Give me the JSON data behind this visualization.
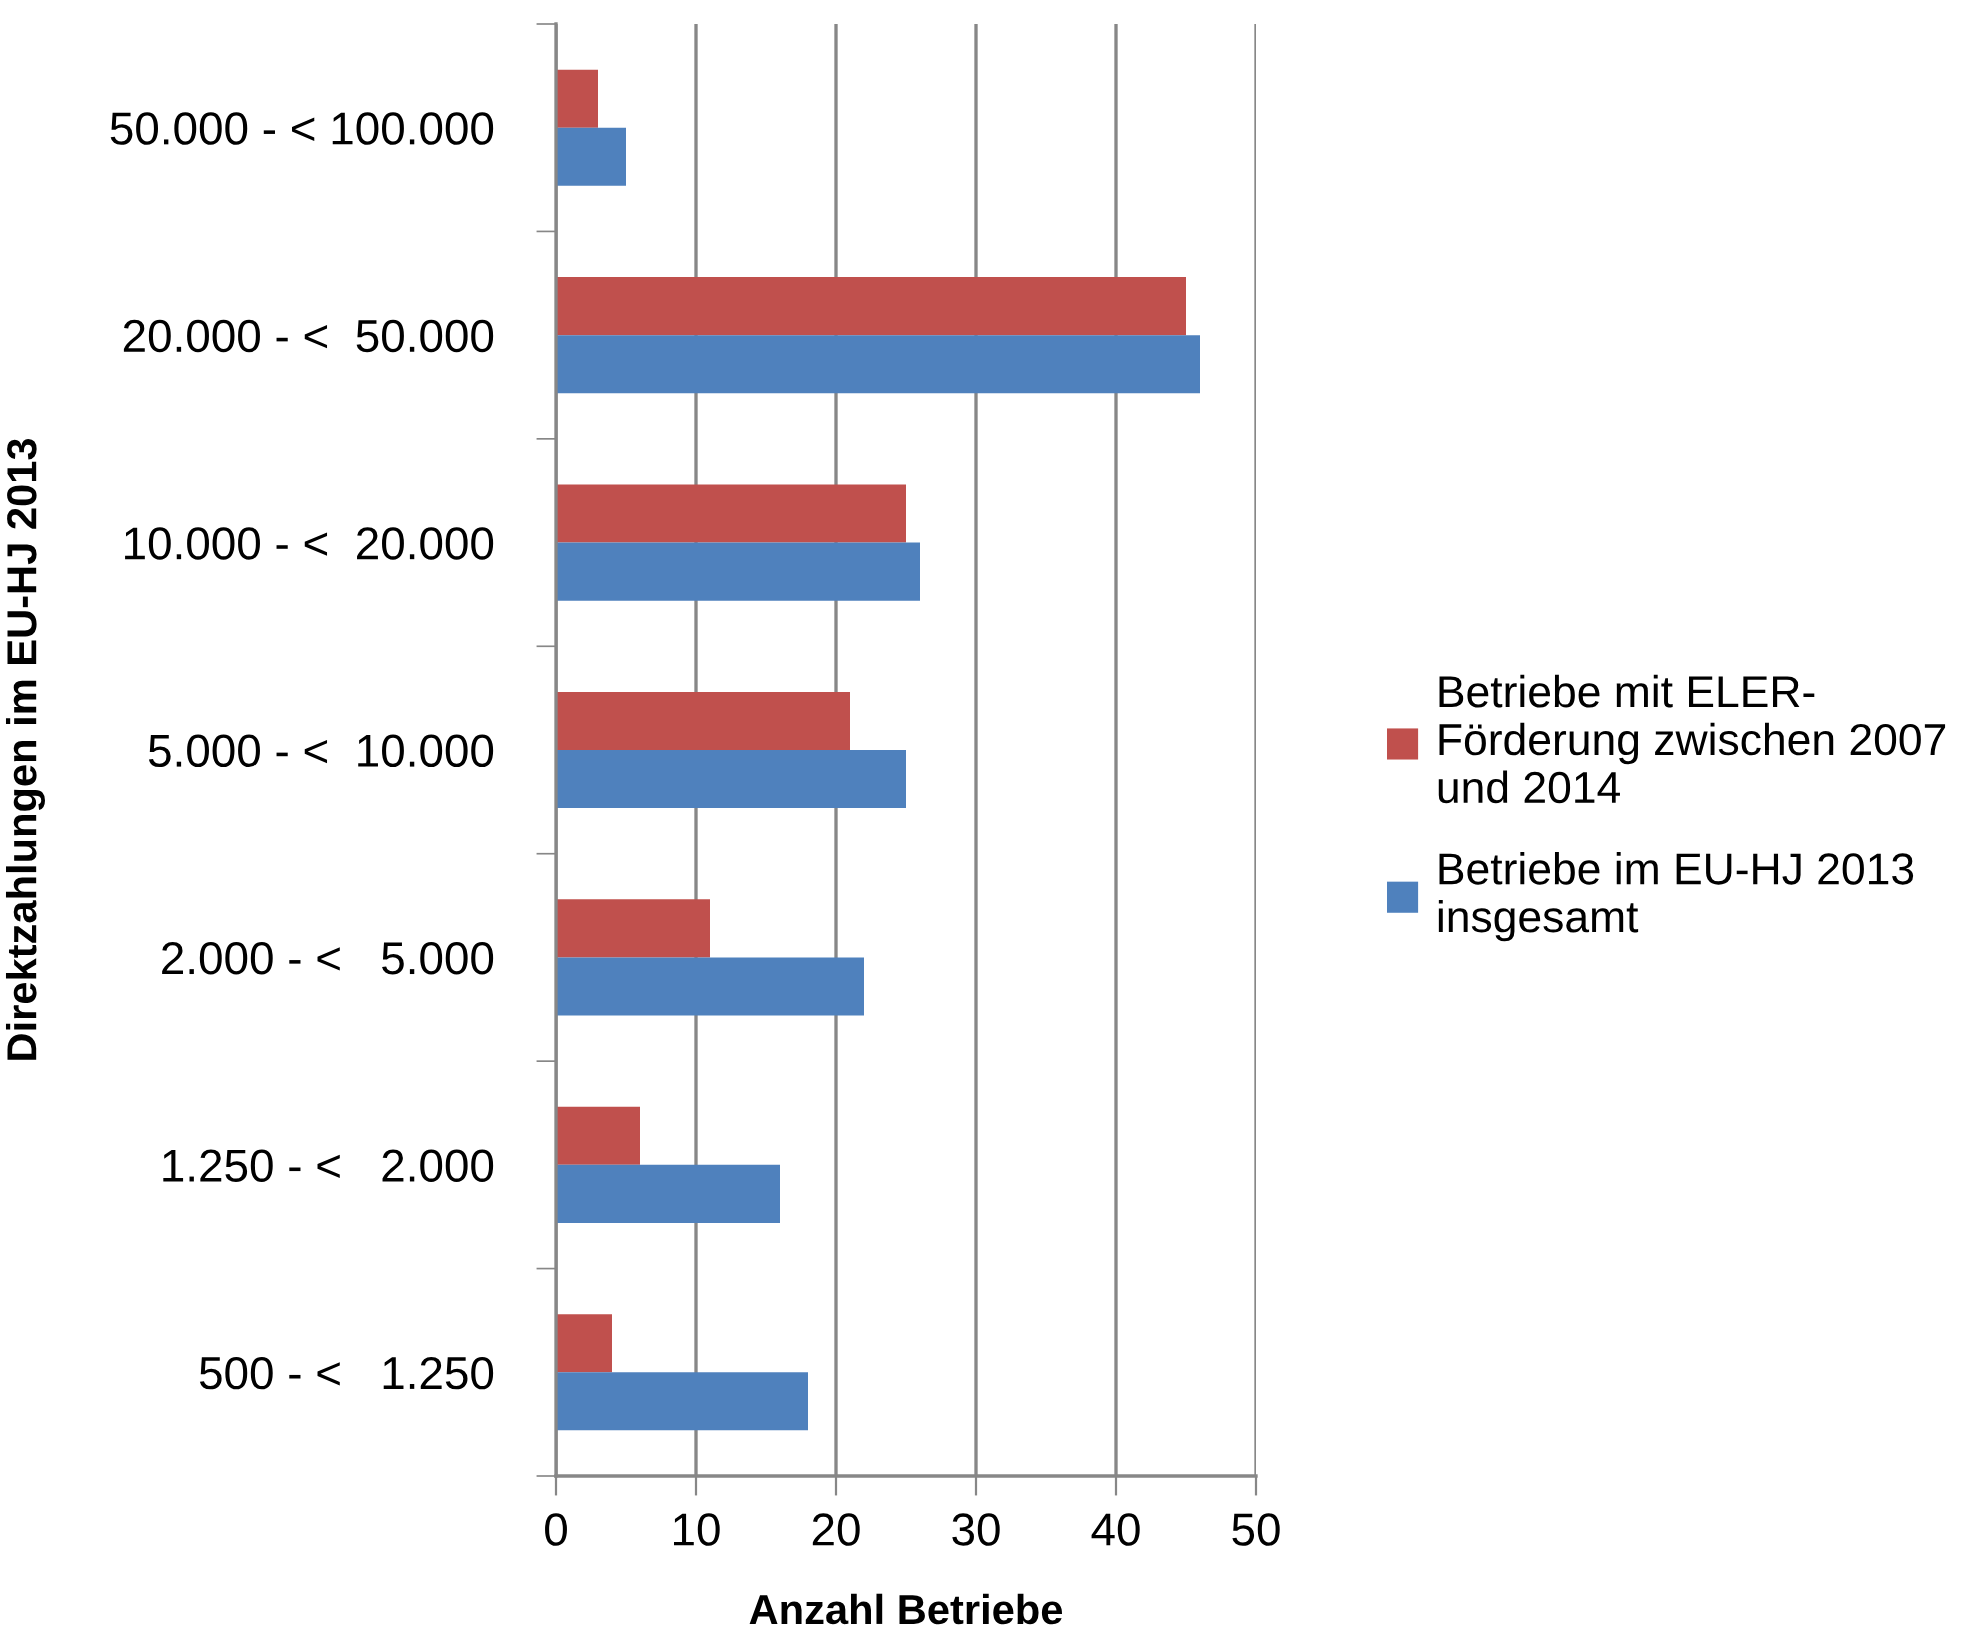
{
  "chart_data": {
    "type": "bar",
    "orientation": "horizontal",
    "xlabel": "Anzahl Betriebe",
    "ylabel": "Direktzahlungen im EU-HJ 2013",
    "categories": [
      "50.000 - < 100.000",
      "20.000 - <  50.000",
      "10.000 - <  20.000",
      "5.000 - <  10.000",
      "2.000 - <   5.000",
      "1.250 - <   2.000",
      "500 - <   1.250"
    ],
    "series": [
      {
        "name": "Betriebe mit ELER-\nFörderung zwischen 2007\nund 2014",
        "color": "#c0504d",
        "values": [
          3,
          45,
          25,
          21,
          11,
          6,
          4
        ]
      },
      {
        "name": "Betriebe im EU-HJ 2013\ninsgesamt",
        "color": "#4f81bd",
        "values": [
          5,
          46,
          26,
          25,
          22,
          16,
          18
        ]
      }
    ],
    "xlim": [
      0,
      50
    ],
    "xticks": [
      0,
      10,
      20,
      30,
      40,
      50
    ],
    "grid": "x",
    "legend": "right"
  }
}
